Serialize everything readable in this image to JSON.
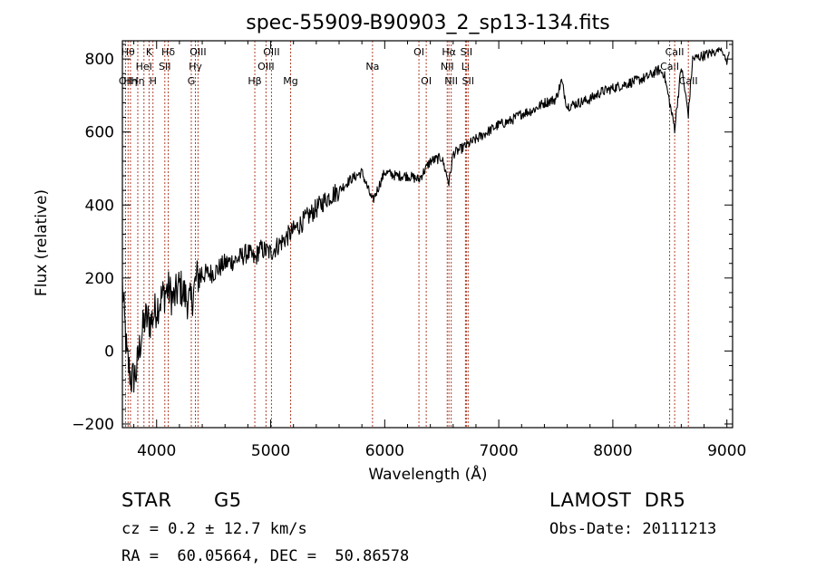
{
  "chart_data": {
    "type": "line",
    "title": "spec-55909-B90903_2_sp13-134.fits",
    "xlabel": "Wavelength (Å)",
    "ylabel": "Flux (relative)",
    "xlim": [
      3700,
      9050
    ],
    "ylim": [
      -210,
      850
    ],
    "x_ticks": [
      4000,
      5000,
      6000,
      7000,
      8000,
      9000
    ],
    "x_tick_labels": [
      "4000",
      "5000",
      "6000",
      "7000",
      "8000",
      "9000"
    ],
    "y_ticks": [
      -200,
      0,
      200,
      400,
      600,
      800
    ],
    "y_tick_labels": [
      "−200",
      "0",
      "200",
      "400",
      "600",
      "800"
    ],
    "grid": false,
    "series": [
      {
        "line_color": "#000000",
        "x": [
          3700,
          3740,
          3780,
          3820,
          3860,
          3900,
          3950,
          4000,
          4050,
          4100,
          4150,
          4200,
          4250,
          4300,
          4350,
          4400,
          4500,
          4600,
          4700,
          4800,
          4862,
          4900,
          5000,
          5100,
          5200,
          5300,
          5400,
          5500,
          5600,
          5700,
          5800,
          5893,
          6000,
          6100,
          6200,
          6300,
          6400,
          6500,
          6563,
          6600,
          6700,
          6800,
          6900,
          7000,
          7100,
          7200,
          7300,
          7400,
          7500,
          7550,
          7600,
          7700,
          7800,
          7900,
          8000,
          8100,
          8200,
          8300,
          8400,
          8450,
          8498,
          8542,
          8600,
          8662,
          8700,
          8800,
          8900,
          8950,
          9000,
          9020
        ],
        "y": [
          180,
          -20,
          -80,
          -60,
          30,
          90,
          80,
          120,
          150,
          170,
          140,
          180,
          150,
          130,
          200,
          210,
          215,
          240,
          250,
          270,
          250,
          280,
          270,
          300,
          330,
          360,
          390,
          420,
          440,
          470,
          490,
          410,
          490,
          480,
          480,
          470,
          520,
          530,
          460,
          540,
          560,
          580,
          600,
          620,
          630,
          650,
          660,
          680,
          690,
          740,
          670,
          680,
          690,
          710,
          720,
          730,
          740,
          750,
          770,
          760,
          680,
          610,
          780,
          650,
          800,
          810,
          820,
          830,
          790,
          820
        ]
      }
    ],
    "line_markers": {
      "color": "#b0402a",
      "lines": [
        {
          "x": 3727,
          "label": "OII",
          "row": 2
        },
        {
          "x": 3750,
          "label": "Hθ",
          "row": 0
        },
        {
          "x": 3771,
          "label": "Hη",
          "row": 2
        },
        {
          "x": 3835,
          "label": "Hη",
          "row": 2
        },
        {
          "x": 3889,
          "label": "HeI",
          "row": 1
        },
        {
          "x": 3934,
          "label": "K",
          "row": 0
        },
        {
          "x": 3968,
          "label": "H",
          "row": 2
        },
        {
          "x": 4072,
          "label": "SII",
          "row": 1
        },
        {
          "x": 4102,
          "label": "Hδ",
          "row": 0
        },
        {
          "x": 4304,
          "label": "G",
          "row": 2
        },
        {
          "x": 4340,
          "label": "Hγ",
          "row": 1
        },
        {
          "x": 4363,
          "label": "OIII",
          "row": 0
        },
        {
          "x": 4861,
          "label": "Hβ",
          "row": 2
        },
        {
          "x": 4959,
          "label": "OIII",
          "row": 1
        },
        {
          "x": 5007,
          "label": "OIII",
          "row": 0
        },
        {
          "x": 5175,
          "label": "Mg",
          "row": 2
        },
        {
          "x": 5893,
          "label": "Na",
          "row": 1
        },
        {
          "x": 6300,
          "label": "OI",
          "row": 0
        },
        {
          "x": 6364,
          "label": "OI",
          "row": 2
        },
        {
          "x": 6548,
          "label": "NII",
          "row": 1
        },
        {
          "x": 6563,
          "label": "Hα",
          "row": 0
        },
        {
          "x": 6583,
          "label": "NII",
          "row": 2
        },
        {
          "x": 6708,
          "label": "Li",
          "row": 1
        },
        {
          "x": 6716,
          "label": "SII",
          "row": 0
        },
        {
          "x": 6731,
          "label": "SII",
          "row": 2
        },
        {
          "x": 8498,
          "label": "CaII",
          "row": 1
        },
        {
          "x": 8542,
          "label": "CaII",
          "row": 0
        },
        {
          "x": 8662,
          "label": "CaII",
          "row": 2
        }
      ]
    }
  },
  "info": {
    "object_class": "STAR",
    "subclass": "G5",
    "survey": "LAMOST  DR5",
    "redshift": "cz = 0.2 ± 12.7 km/s",
    "obs_date": "Obs-Date: 20111213",
    "coords": "RA =  60.05664, DEC =  50.86578"
  }
}
